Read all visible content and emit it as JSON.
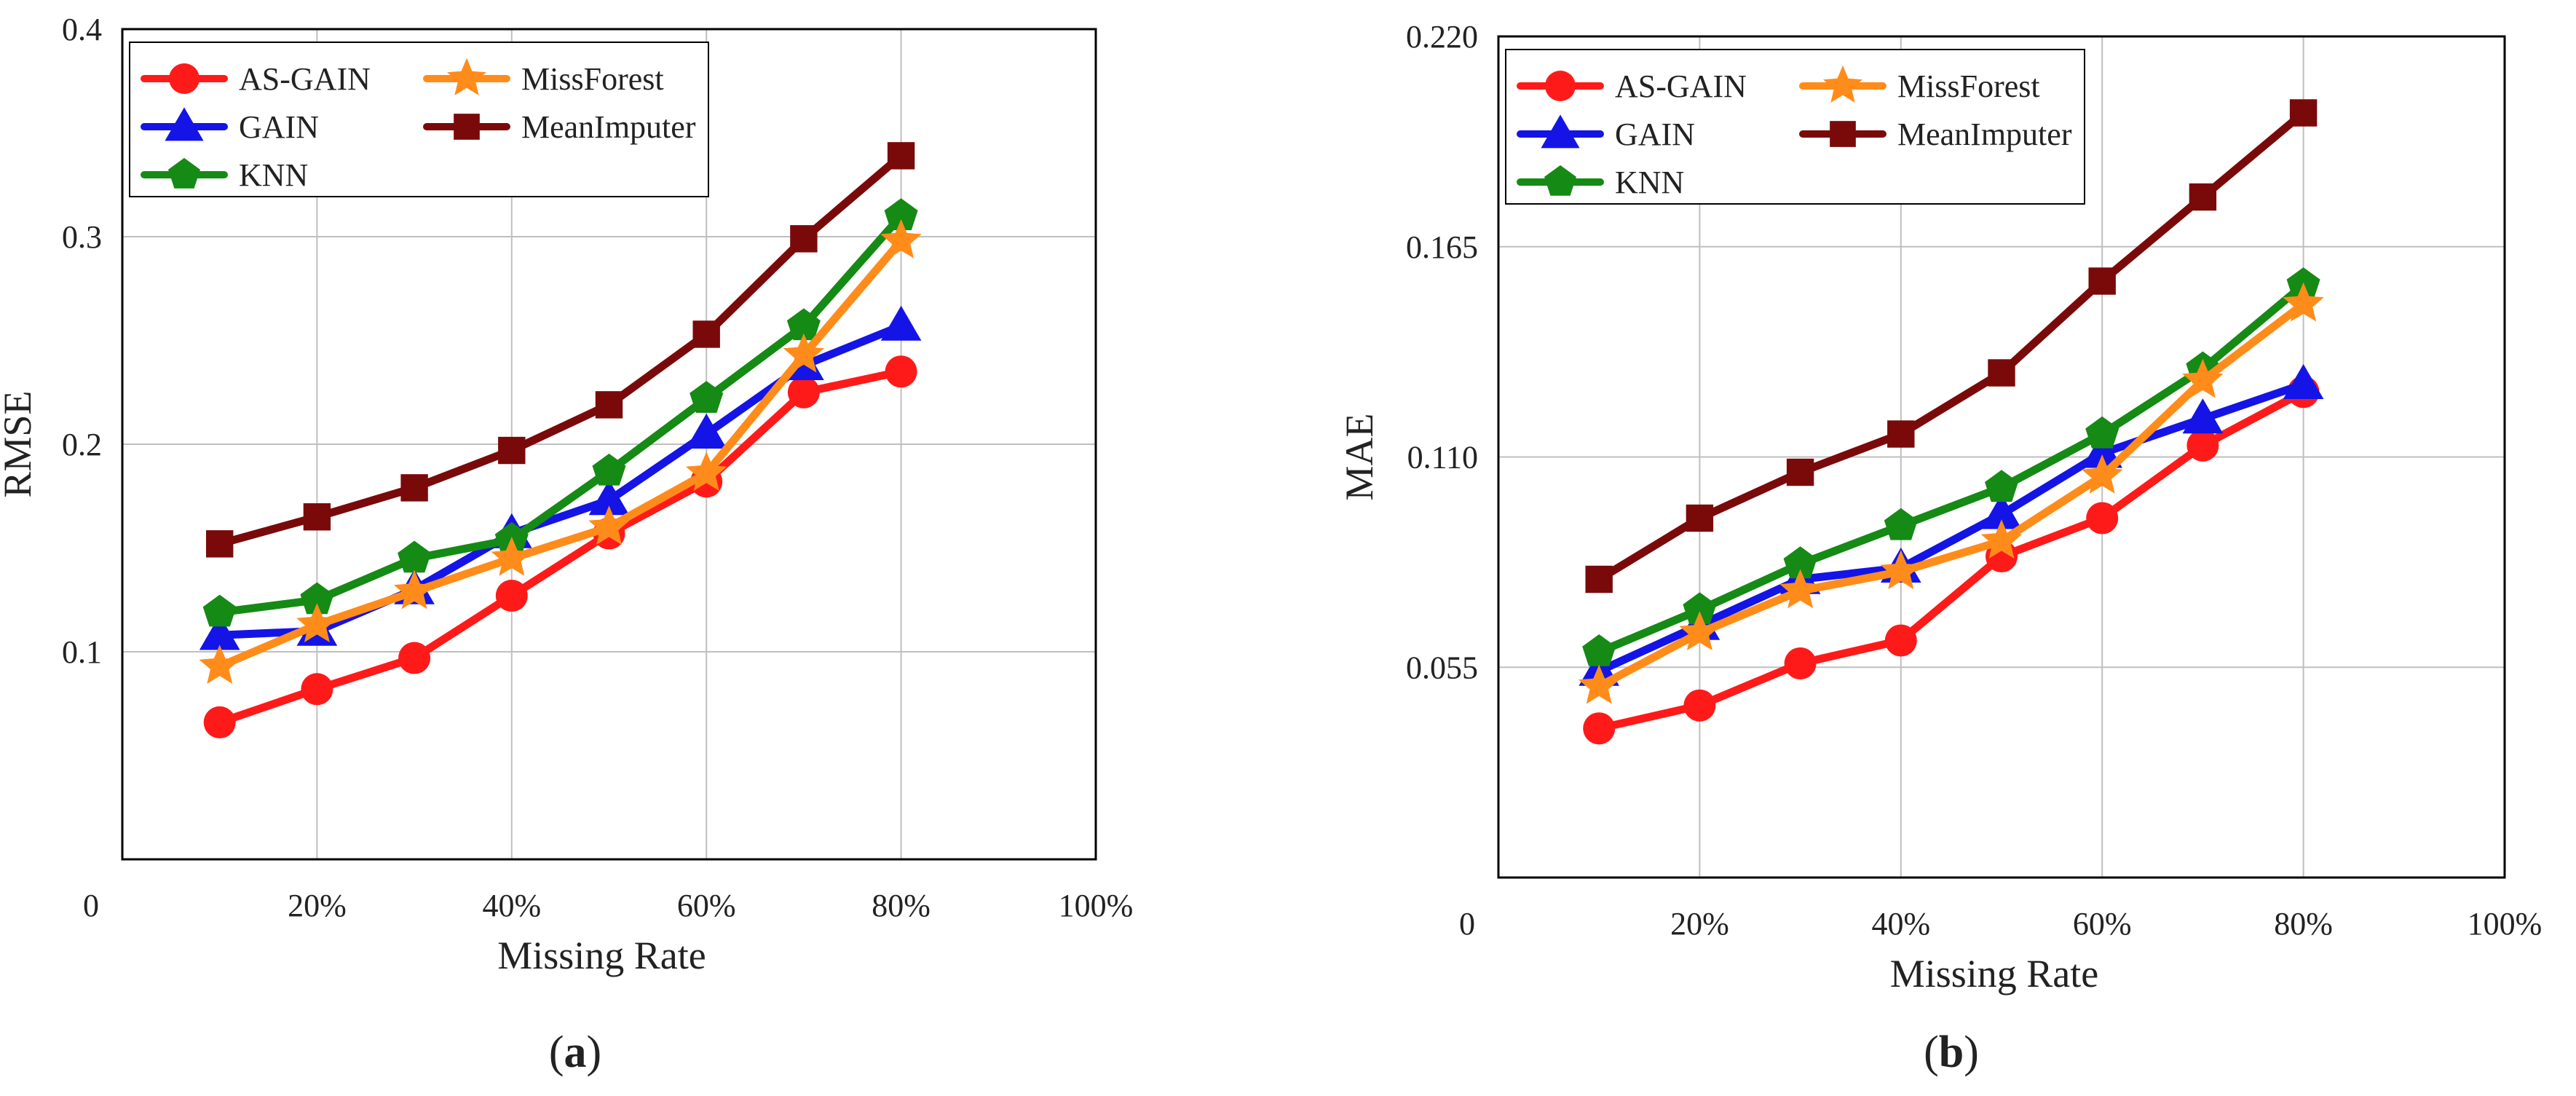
{
  "chart_data": [
    {
      "type": "line",
      "panel_label": "a",
      "ylabel": "RMSE",
      "xlabel": "Missing Rate",
      "xlim": [
        0,
        100
      ],
      "ylim": [
        0,
        0.4
      ],
      "x_ticks": [
        0,
        20,
        40,
        60,
        80,
        100
      ],
      "x_tick_labels": [
        "0",
        "20%",
        "40%",
        "60%",
        "80%",
        "100%"
      ],
      "y_ticks": [
        0.1,
        0.2,
        0.3,
        0.4
      ],
      "y_tick_labels": [
        "0.1",
        "0.2",
        "0.3",
        "0.4"
      ],
      "grid": true,
      "legend_position": "top-left",
      "x": [
        10,
        20,
        30,
        40,
        50,
        60,
        70,
        80
      ],
      "series": [
        {
          "name": "AS-GAIN",
          "color": "#ff1a1a",
          "marker": "circle",
          "values": [
            0.066,
            0.082,
            0.097,
            0.127,
            0.157,
            0.182,
            0.225,
            0.235
          ]
        },
        {
          "name": "GAIN",
          "color": "#1414e6",
          "marker": "triangle",
          "values": [
            0.108,
            0.11,
            0.13,
            0.157,
            0.173,
            0.205,
            0.238,
            0.257
          ]
        },
        {
          "name": "KNN",
          "color": "#158a15",
          "marker": "pentagon",
          "values": [
            0.119,
            0.125,
            0.145,
            0.154,
            0.187,
            0.222,
            0.257,
            0.31
          ]
        },
        {
          "name": "MissForest",
          "color": "#ff8c1a",
          "marker": "star",
          "values": [
            0.093,
            0.113,
            0.129,
            0.145,
            0.16,
            0.186,
            0.243,
            0.298
          ]
        },
        {
          "name": "MeanImputer",
          "color": "#7a0a0a",
          "marker": "square",
          "values": [
            0.152,
            0.165,
            0.179,
            0.197,
            0.219,
            0.253,
            0.299,
            0.339
          ]
        }
      ]
    },
    {
      "type": "line",
      "panel_label": "b",
      "ylabel": "MAE",
      "xlabel": "Missing Rate",
      "xlim": [
        0,
        100
      ],
      "ylim": [
        0,
        0.22
      ],
      "x_ticks": [
        0,
        20,
        40,
        60,
        80,
        100
      ],
      "x_tick_labels": [
        "0",
        "20%",
        "40%",
        "60%",
        "80%",
        "100%"
      ],
      "y_ticks": [
        0.055,
        0.11,
        0.165,
        0.22
      ],
      "y_tick_labels": [
        "0.055",
        "0.110",
        "0.165",
        "0.220"
      ],
      "grid": true,
      "legend_position": "top-left",
      "x": [
        10,
        20,
        30,
        40,
        50,
        60,
        70,
        80
      ],
      "series": [
        {
          "name": "AS-GAIN",
          "color": "#ff1a1a",
          "marker": "circle",
          "values": [
            0.039,
            0.045,
            0.056,
            0.062,
            0.084,
            0.094,
            0.113,
            0.127
          ]
        },
        {
          "name": "GAIN",
          "color": "#1414e6",
          "marker": "triangle",
          "values": [
            0.054,
            0.066,
            0.078,
            0.081,
            0.095,
            0.111,
            0.12,
            0.129
          ]
        },
        {
          "name": "KNN",
          "color": "#158a15",
          "marker": "pentagon",
          "values": [
            0.059,
            0.07,
            0.082,
            0.092,
            0.102,
            0.116,
            0.133,
            0.155
          ]
        },
        {
          "name": "MissForest",
          "color": "#ff8c1a",
          "marker": "star",
          "values": [
            0.05,
            0.064,
            0.075,
            0.08,
            0.088,
            0.105,
            0.13,
            0.15
          ]
        },
        {
          "name": "MeanImputer",
          "color": "#7a0a0a",
          "marker": "square",
          "values": [
            0.078,
            0.094,
            0.106,
            0.116,
            0.132,
            0.156,
            0.178,
            0.2
          ]
        }
      ]
    }
  ]
}
